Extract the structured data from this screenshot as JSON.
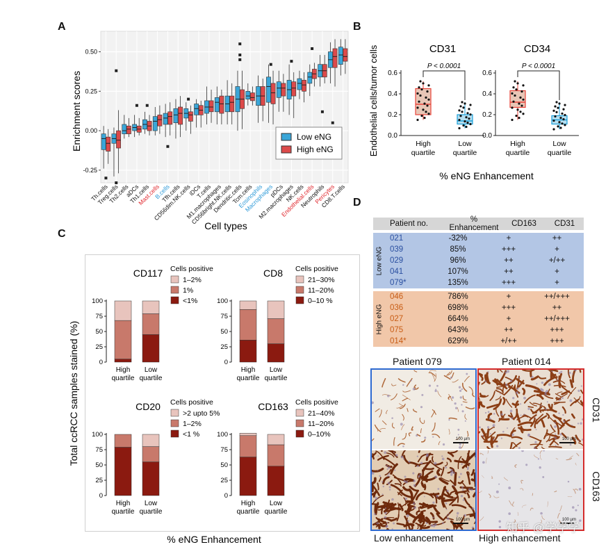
{
  "panels": {
    "A": "A",
    "B": "B",
    "C": "C",
    "D": "D"
  },
  "colors": {
    "low": "#3aa6d8",
    "high": "#dc4a4a",
    "box_b": "#e8433a",
    "box_b_low": "#1a9fd8",
    "bar_dark": "#8b1a10",
    "bar_mid": "#c8796b",
    "bar_light": "#e8c4bd",
    "blue_label": "#2d9ad8",
    "red_label": "#e0262c",
    "blue_row": "#b3c6e5",
    "orange_row": "#f1c7a9"
  },
  "panelA": {
    "ylabel": "Enrichment scores",
    "xlabel": "Cell types",
    "yticks": [
      "0.50",
      "0.25",
      "0.00",
      "-0.25"
    ],
    "legend": {
      "low": "Low eNG",
      "high": "High eNG"
    },
    "categories": [
      {
        "name": "Th.cells",
        "color": "black",
        "low": {
          "min": -0.24,
          "q1": -0.12,
          "med": -0.05,
          "q3": -0.02,
          "max": 0.03
        },
        "high": {
          "min": -0.21,
          "q1": -0.13,
          "med": -0.08,
          "q3": -0.04,
          "max": 0.01
        }
      },
      {
        "name": "Treg.cells",
        "color": "black",
        "low": {
          "min": -0.29,
          "q1": -0.08,
          "med": -0.05,
          "q3": -0.02,
          "max": 0.02
        },
        "high": {
          "min": -0.27,
          "q1": -0.11,
          "med": -0.06,
          "q3": 0.0,
          "max": 0.13
        }
      },
      {
        "name": "Th2.cells",
        "color": "black",
        "low": {
          "min": -0.05,
          "q1": -0.02,
          "med": 0.0,
          "q3": 0.04,
          "max": 0.1
        },
        "high": {
          "min": -0.04,
          "q1": -0.02,
          "med": 0.01,
          "q3": 0.03,
          "max": 0.08
        }
      },
      {
        "name": "aDCs",
        "color": "black",
        "low": {
          "min": -0.04,
          "q1": 0.0,
          "med": 0.02,
          "q3": 0.04,
          "max": 0.1
        },
        "high": {
          "min": -0.03,
          "q1": -0.01,
          "med": 0.01,
          "q3": 0.03,
          "max": 0.08
        }
      },
      {
        "name": "Th1.cells",
        "color": "black",
        "low": {
          "min": -0.02,
          "q1": 0.01,
          "med": 0.04,
          "q3": 0.07,
          "max": 0.12
        },
        "high": {
          "min": -0.03,
          "q1": 0.0,
          "med": 0.03,
          "q3": 0.06,
          "max": 0.1
        }
      },
      {
        "name": "Mast.cells",
        "color": "red",
        "low": {
          "min": -0.03,
          "q1": 0.0,
          "med": 0.06,
          "q3": 0.09,
          "max": 0.15
        },
        "high": {
          "min": -0.02,
          "q1": 0.03,
          "med": 0.07,
          "q3": 0.1,
          "max": 0.16
        }
      },
      {
        "name": "B.cells",
        "color": "blue",
        "low": {
          "min": -0.04,
          "q1": 0.04,
          "med": 0.08,
          "q3": 0.11,
          "max": 0.17
        },
        "high": {
          "min": -0.03,
          "q1": 0.04,
          "med": 0.09,
          "q3": 0.12,
          "max": 0.18
        }
      },
      {
        "name": "Tfh.cells",
        "color": "black",
        "low": {
          "min": -0.05,
          "q1": 0.05,
          "med": 0.1,
          "q3": 0.14,
          "max": 0.2
        },
        "high": {
          "min": -0.04,
          "q1": 0.04,
          "med": 0.11,
          "q3": 0.15,
          "max": 0.22
        }
      },
      {
        "name": "CD56dim.NK.cells",
        "color": "black",
        "low": {
          "min": 0.0,
          "q1": 0.08,
          "med": 0.11,
          "q3": 0.14,
          "max": 0.18
        },
        "high": {
          "min": -0.02,
          "q1": 0.06,
          "med": 0.1,
          "q3": 0.12,
          "max": 0.16
        }
      },
      {
        "name": "iDCs",
        "color": "black",
        "low": {
          "min": 0.02,
          "q1": 0.1,
          "med": 0.14,
          "q3": 0.17,
          "max": 0.2
        },
        "high": {
          "min": 0.02,
          "q1": 0.1,
          "med": 0.13,
          "q3": 0.16,
          "max": 0.19
        }
      },
      {
        "name": "T.cells",
        "color": "black",
        "low": {
          "min": 0.04,
          "q1": 0.11,
          "med": 0.15,
          "q3": 0.19,
          "max": 0.28
        },
        "high": {
          "min": 0.05,
          "q1": 0.12,
          "med": 0.15,
          "q3": 0.19,
          "max": 0.26
        }
      },
      {
        "name": "M1.macrophages",
        "color": "black",
        "low": {
          "min": 0.04,
          "q1": 0.12,
          "med": 0.18,
          "q3": 0.21,
          "max": 0.28
        },
        "high": {
          "min": 0.04,
          "q1": 0.11,
          "med": 0.17,
          "q3": 0.22,
          "max": 0.26
        }
      },
      {
        "name": "CD56bright.NK.cells",
        "color": "black",
        "low": {
          "min": 0.04,
          "q1": 0.12,
          "med": 0.17,
          "q3": 0.22,
          "max": 0.32
        },
        "high": {
          "min": 0.04,
          "q1": 0.12,
          "med": 0.18,
          "q3": 0.22,
          "max": 0.3
        }
      },
      {
        "name": "Dendritic.cells",
        "color": "black",
        "low": {
          "min": 0.0,
          "q1": 0.12,
          "med": 0.2,
          "q3": 0.28,
          "max": 0.38
        },
        "high": {
          "min": 0.01,
          "q1": 0.14,
          "med": 0.2,
          "q3": 0.26,
          "max": 0.38
        }
      },
      {
        "name": "Tcm.cells",
        "color": "black",
        "low": {
          "min": 0.16,
          "q1": 0.2,
          "med": 0.22,
          "q3": 0.25,
          "max": 0.3
        },
        "high": {
          "min": 0.16,
          "q1": 0.19,
          "med": 0.21,
          "q3": 0.24,
          "max": 0.28
        }
      },
      {
        "name": "Eosinophils",
        "color": "blue",
        "low": {
          "min": 0.05,
          "q1": 0.16,
          "med": 0.22,
          "q3": 0.28,
          "max": 0.35
        },
        "high": {
          "min": 0.06,
          "q1": 0.16,
          "med": 0.22,
          "q3": 0.28,
          "max": 0.33
        }
      },
      {
        "name": "Macrophages",
        "color": "blue",
        "low": {
          "min": 0.05,
          "q1": 0.18,
          "med": 0.28,
          "q3": 0.34,
          "max": 0.42
        },
        "high": {
          "min": 0.04,
          "q1": 0.17,
          "med": 0.24,
          "q3": 0.3,
          "max": 0.38
        }
      },
      {
        "name": "pDCs",
        "color": "black",
        "low": {
          "min": 0.12,
          "q1": 0.21,
          "med": 0.27,
          "q3": 0.31,
          "max": 0.38
        },
        "high": {
          "min": 0.12,
          "q1": 0.22,
          "med": 0.27,
          "q3": 0.3,
          "max": 0.36
        }
      },
      {
        "name": "M2.macrophages",
        "color": "black",
        "low": {
          "min": 0.1,
          "q1": 0.2,
          "med": 0.26,
          "q3": 0.32,
          "max": 0.42
        },
        "high": {
          "min": 0.08,
          "q1": 0.22,
          "med": 0.27,
          "q3": 0.31,
          "max": 0.37
        }
      },
      {
        "name": "NK.cells",
        "color": "black",
        "low": {
          "min": 0.2,
          "q1": 0.26,
          "med": 0.3,
          "q3": 0.33,
          "max": 0.38
        },
        "high": {
          "min": 0.18,
          "q1": 0.25,
          "med": 0.29,
          "q3": 0.32,
          "max": 0.37
        }
      },
      {
        "name": "Endothelial.cells",
        "color": "red",
        "low": {
          "min": 0.22,
          "q1": 0.3,
          "med": 0.34,
          "q3": 0.37,
          "max": 0.42
        },
        "high": {
          "min": 0.28,
          "q1": 0.33,
          "med": 0.36,
          "q3": 0.39,
          "max": 0.43
        }
      },
      {
        "name": "Neutrophils",
        "color": "black",
        "low": {
          "min": 0.28,
          "q1": 0.34,
          "med": 0.38,
          "q3": 0.42,
          "max": 0.48
        },
        "high": {
          "min": 0.3,
          "q1": 0.34,
          "med": 0.38,
          "q3": 0.42,
          "max": 0.48
        }
      },
      {
        "name": "Pericytes",
        "color": "red",
        "low": {
          "min": 0.3,
          "q1": 0.4,
          "med": 0.45,
          "q3": 0.5,
          "max": 0.56
        },
        "high": {
          "min": 0.28,
          "q1": 0.4,
          "med": 0.47,
          "q3": 0.52,
          "max": 0.58
        }
      },
      {
        "name": "CD8.T.cells",
        "color": "black",
        "low": {
          "min": 0.35,
          "q1": 0.42,
          "med": 0.48,
          "q3": 0.53,
          "max": 0.58
        },
        "high": {
          "min": 0.36,
          "q1": 0.44,
          "med": 0.47,
          "q3": 0.52,
          "max": 0.58
        }
      }
    ]
  },
  "panelB": {
    "ylabel": "Endothelial cells/tumor cells",
    "xlabel": "% eNG Enhancement",
    "yticks": [
      "0.6",
      "0.4",
      "0.2",
      "0.0"
    ],
    "plots": [
      {
        "title": "CD31",
        "pvalue": "P < 0.0001",
        "high": {
          "label1": "High",
          "label2": "quartile",
          "min": 0.15,
          "q1": 0.2,
          "med": 0.3,
          "q3": 0.45,
          "max": 0.52
        },
        "low": {
          "label1": "Low",
          "label2": "quartile",
          "min": 0.07,
          "q1": 0.11,
          "med": 0.14,
          "q3": 0.2,
          "max": 0.32
        }
      },
      {
        "title": "CD34",
        "pvalue": "P < 0.0001",
        "high": {
          "label1": "High",
          "label2": "quartile",
          "min": 0.15,
          "q1": 0.27,
          "med": 0.32,
          "q3": 0.43,
          "max": 0.52
        },
        "low": {
          "label1": "Low",
          "label2": "quartile",
          "min": 0.06,
          "q1": 0.11,
          "med": 0.15,
          "q3": 0.19,
          "max": 0.32
        }
      }
    ]
  },
  "panelC": {
    "ylabel": "Total ccRCC samples stained (%)",
    "xlabel": "% eNG Enhancement",
    "legend_title": "Cells positive",
    "yticks": [
      "100",
      "75",
      "50",
      "25",
      "0"
    ],
    "xcats": [
      [
        "High",
        "quartile"
      ],
      [
        "Low",
        "quartile"
      ]
    ],
    "charts": [
      {
        "title": "CD117",
        "legend": [
          "1–2%",
          "1%",
          "<1%"
        ],
        "bars": [
          {
            "dark": 5,
            "mid": 63,
            "light": 32
          },
          {
            "dark": 45,
            "mid": 34,
            "light": 21
          }
        ]
      },
      {
        "title": "CD8",
        "legend": [
          "21–30%",
          "11–20%",
          "0–10 %"
        ],
        "bars": [
          {
            "dark": 36,
            "mid": 50,
            "light": 14
          },
          {
            "dark": 30,
            "mid": 41,
            "light": 29
          }
        ]
      },
      {
        "title": "CD20",
        "legend": [
          ">2 upto 5%",
          "1–2%",
          "<1 %"
        ],
        "bars": [
          {
            "dark": 79,
            "mid": 21,
            "light": 0
          },
          {
            "dark": 55,
            "mid": 25,
            "light": 20
          }
        ]
      },
      {
        "title": "CD163",
        "legend": [
          "21–40%",
          "11–20%",
          "0–10%"
        ],
        "bars": [
          {
            "dark": 63,
            "mid": 35,
            "light": 4
          },
          {
            "dark": 48,
            "mid": 35,
            "light": 17
          }
        ]
      }
    ]
  },
  "panelD": {
    "headers": [
      "Patient no.",
      "% Enhancement",
      "CD163",
      "CD31"
    ],
    "low_label": "Low eNG",
    "high_label": "High eNG",
    "low_rows": [
      [
        "021",
        "-32%",
        "+",
        "++"
      ],
      [
        "039",
        "85%",
        "+++",
        "+"
      ],
      [
        "029",
        "96%",
        "++",
        "+/++"
      ],
      [
        "041",
        "107%",
        "++",
        "+"
      ],
      [
        "079*",
        "135%",
        "+++",
        "+"
      ]
    ],
    "high_rows": [
      [
        "046",
        "786%",
        "+",
        "++/+++"
      ],
      [
        "036",
        "698%",
        "+++",
        "++"
      ],
      [
        "027",
        "664%",
        "+",
        "++/+++"
      ],
      [
        "075",
        "643%",
        "++",
        "+++"
      ],
      [
        "014*",
        "629%",
        "+/++",
        "+++"
      ]
    ],
    "images": {
      "patient_left": "Patient 079",
      "patient_right": "Patient 014",
      "row_top": "CD31",
      "row_bottom": "CD163",
      "bottom_left": "Low enhancement",
      "bottom_right": "High enhancement",
      "scale": "100 µm"
    },
    "watermark": "知乎 @学学学"
  }
}
